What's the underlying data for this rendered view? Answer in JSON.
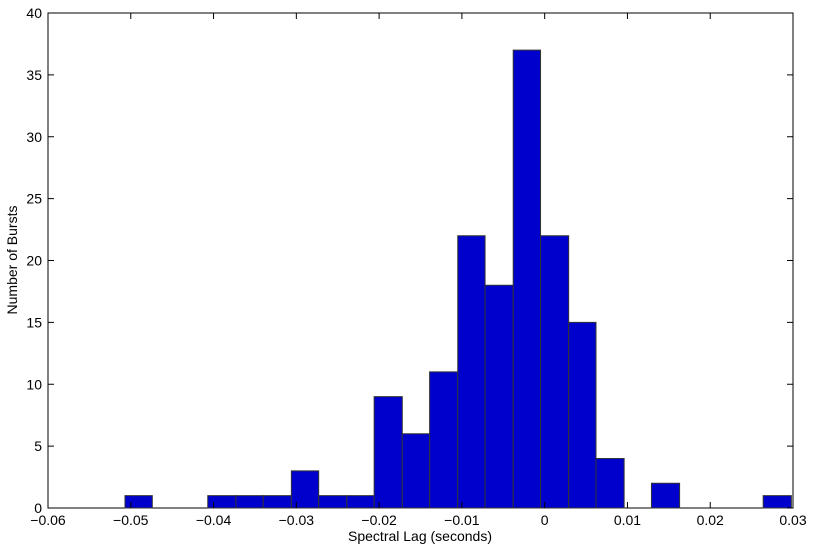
{
  "chart_data": {
    "type": "bar",
    "subtype": "histogram",
    "xlabel": "Spectral Lag (seconds)",
    "ylabel": "Number of Bursts",
    "xlim": [
      -0.06,
      0.03
    ],
    "ylim": [
      0,
      40
    ],
    "bin_width": 0.00335,
    "bars": [
      {
        "x_left": -0.0507,
        "x_right": -0.0474,
        "value": 1
      },
      {
        "x_left": -0.0407,
        "x_right": -0.0373,
        "value": 1
      },
      {
        "x_left": -0.0373,
        "x_right": -0.034,
        "value": 1
      },
      {
        "x_left": -0.034,
        "x_right": -0.0306,
        "value": 1
      },
      {
        "x_left": -0.0306,
        "x_right": -0.0273,
        "value": 3
      },
      {
        "x_left": -0.0273,
        "x_right": -0.0239,
        "value": 1
      },
      {
        "x_left": -0.0239,
        "x_right": -0.0206,
        "value": 1
      },
      {
        "x_left": -0.0206,
        "x_right": -0.0172,
        "value": 9
      },
      {
        "x_left": -0.0172,
        "x_right": -0.0139,
        "value": 6
      },
      {
        "x_left": -0.0139,
        "x_right": -0.0105,
        "value": 11
      },
      {
        "x_left": -0.0105,
        "x_right": -0.0072,
        "value": 22
      },
      {
        "x_left": -0.0072,
        "x_right": -0.0038,
        "value": 18
      },
      {
        "x_left": -0.0038,
        "x_right": -0.0005,
        "value": 37
      },
      {
        "x_left": -0.0005,
        "x_right": 0.0029,
        "value": 22
      },
      {
        "x_left": 0.0029,
        "x_right": 0.0062,
        "value": 15
      },
      {
        "x_left": 0.0062,
        "x_right": 0.0096,
        "value": 4
      },
      {
        "x_left": 0.0129,
        "x_right": 0.0163,
        "value": 2
      },
      {
        "x_left": 0.0264,
        "x_right": 0.0298,
        "value": 1
      }
    ],
    "x_ticks": [
      {
        "value": -0.06,
        "label": "−0.06"
      },
      {
        "value": -0.05,
        "label": "−0.05"
      },
      {
        "value": -0.04,
        "label": "−0.04"
      },
      {
        "value": -0.03,
        "label": "−0.03"
      },
      {
        "value": -0.02,
        "label": "−0.02"
      },
      {
        "value": -0.01,
        "label": "−0.01"
      },
      {
        "value": 0,
        "label": "0"
      },
      {
        "value": 0.01,
        "label": "0.01"
      },
      {
        "value": 0.02,
        "label": "0.02"
      },
      {
        "value": 0.03,
        "label": "0.03"
      }
    ],
    "y_ticks": [
      {
        "value": 0,
        "label": "0"
      },
      {
        "value": 5,
        "label": "5"
      },
      {
        "value": 10,
        "label": "10"
      },
      {
        "value": 15,
        "label": "15"
      },
      {
        "value": 20,
        "label": "20"
      },
      {
        "value": 25,
        "label": "25"
      },
      {
        "value": 30,
        "label": "30"
      },
      {
        "value": 35,
        "label": "35"
      },
      {
        "value": 40,
        "label": "40"
      }
    ],
    "grid": false,
    "legend": "none",
    "bar_color": "#0000cc",
    "bar_edge_color": "#333333"
  }
}
